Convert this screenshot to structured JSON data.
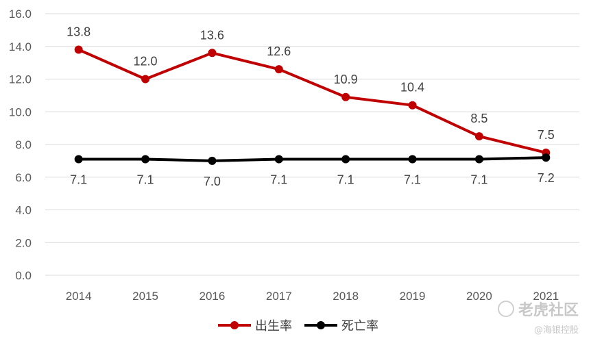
{
  "chart_data": {
    "type": "line",
    "title": "",
    "xlabel": "",
    "ylabel": "",
    "categories": [
      "2014",
      "2015",
      "2016",
      "2017",
      "2018",
      "2019",
      "2020",
      "2021"
    ],
    "ylim": [
      0,
      16
    ],
    "yticks": [
      "0.0",
      "2.0",
      "4.0",
      "6.0",
      "8.0",
      "10.0",
      "12.0",
      "14.0",
      "16.0"
    ],
    "grid": true,
    "legend_position": "bottom",
    "series": [
      {
        "name": "出生率",
        "color": "#c00000",
        "values": [
          13.8,
          12.0,
          13.6,
          12.6,
          10.9,
          10.4,
          8.5,
          7.5
        ],
        "labels": [
          "13.8",
          "12.0",
          "13.6",
          "12.6",
          "10.9",
          "10.4",
          "8.5",
          "7.5"
        ],
        "label_position": "above"
      },
      {
        "name": "死亡率",
        "color": "#000000",
        "values": [
          7.1,
          7.1,
          7.0,
          7.1,
          7.1,
          7.1,
          7.1,
          7.2
        ],
        "labels": [
          "7.1",
          "7.1",
          "7.0",
          "7.1",
          "7.1",
          "7.1",
          "7.1",
          "7.2"
        ],
        "label_position": "below"
      }
    ]
  },
  "watermark": {
    "main": "老虎社区",
    "sub": "@海银控股"
  }
}
